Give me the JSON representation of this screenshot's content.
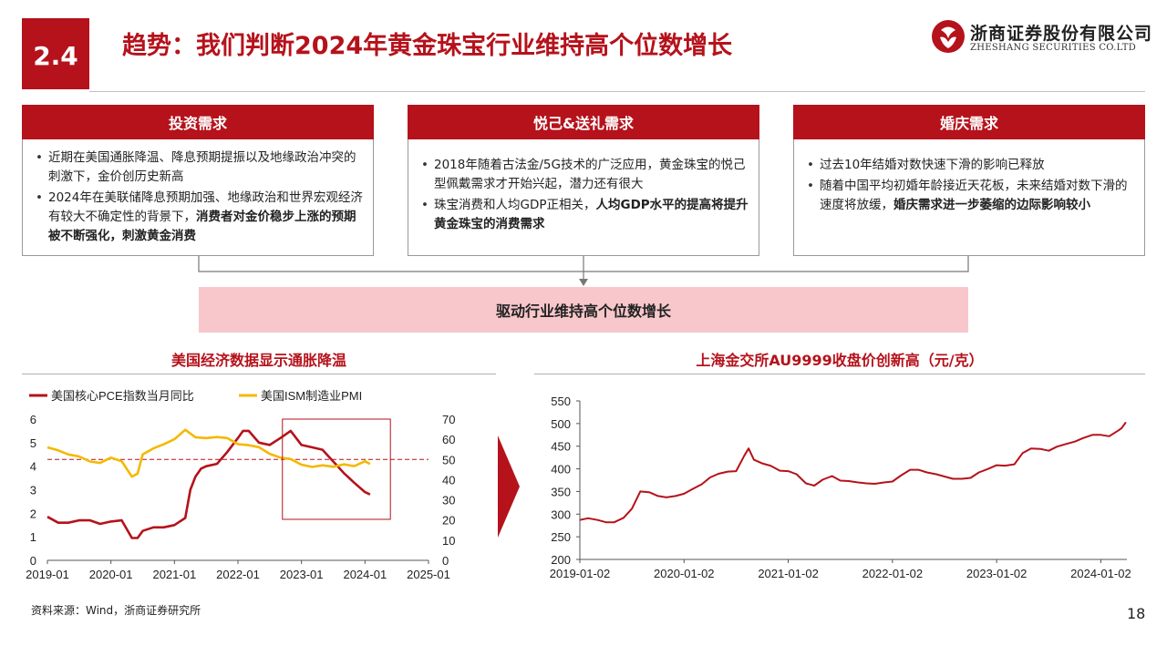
{
  "header": {
    "section_number": "2.4",
    "title": "趋势：我们判断2024年黄金珠宝行业维持高个位数增长",
    "logo_cn": "浙商证券股份有限公司",
    "logo_en": "ZHESHANG SECURITIES CO.LTD"
  },
  "panels": [
    {
      "title": "投资需求",
      "bullets": [
        {
          "text": "近期在美国通胀降温、降息预期提振以及地缘政治冲突的刺激下，金价创历史新高",
          "bold": ""
        },
        {
          "text": "2024年在美联储降息预期加强、地缘政治和世界宏观经济有较大不确定性的背景下，",
          "bold": "消费者对金价稳步上涨的预期被不断强化，刺激黄金消费"
        }
      ]
    },
    {
      "title": "悦己&送礼需求",
      "bullets": [
        {
          "text": "2018年随着古法金/5G技术的广泛应用，黄金珠宝的悦己型佩戴需求才开始兴起，潜力还有很大",
          "bold": ""
        },
        {
          "text": "珠宝消费和人均GDP正相关，",
          "bold": "人均GDP水平的提高将提升黄金珠宝的消费需求"
        }
      ]
    },
    {
      "title": "婚庆需求",
      "bullets": [
        {
          "text": "过去10年结婚对数快速下滑的影响已释放",
          "bold": ""
        },
        {
          "text": "随着中国平均初婚年龄接近天花板，未来结婚对数下滑的速度将放缓，",
          "bold": "婚庆需求进一步萎缩的边际影响较小"
        }
      ]
    }
  ],
  "driver_banner": "驱动行业维持高个位数增长",
  "colors": {
    "accent": "#b5121b",
    "gold": "#f5b800",
    "banner_bg": "#f7c7cb"
  },
  "chart_data": [
    {
      "type": "line",
      "title": "美国经济数据显示通胀降温",
      "x_ticks": [
        "2019-01",
        "2020-01",
        "2021-01",
        "2022-01",
        "2023-01",
        "2024-01",
        "2025-01"
      ],
      "x_range": [
        2019.0,
        2025.0
      ],
      "y_left_range": [
        0,
        6
      ],
      "y_left_ticks": [
        "0",
        "1",
        "2",
        "3",
        "4",
        "5",
        "6"
      ],
      "y_right_range": [
        0,
        70
      ],
      "y_right_ticks": [
        "0",
        "10",
        "20",
        "30",
        "40",
        "50",
        "60",
        "70"
      ],
      "reference_line": {
        "axis": "right",
        "value": 50
      },
      "highlight_box": {
        "x_start": 2022.7,
        "x_end": 2024.4
      },
      "series": [
        {
          "name": "美国核心PCE指数当月同比",
          "color": "#b5121b",
          "axis": "left",
          "x": [
            2019.0,
            2019.17,
            2019.33,
            2019.5,
            2019.67,
            2019.83,
            2020.0,
            2020.17,
            2020.33,
            2020.42,
            2020.5,
            2020.67,
            2020.83,
            2021.0,
            2021.17,
            2021.25,
            2021.33,
            2021.42,
            2021.5,
            2021.67,
            2021.83,
            2022.0,
            2022.08,
            2022.17,
            2022.33,
            2022.5,
            2022.67,
            2022.83,
            2023.0,
            2023.17,
            2023.33,
            2023.5,
            2023.67,
            2023.83,
            2024.0,
            2024.08
          ],
          "values": [
            1.85,
            1.6,
            1.6,
            1.7,
            1.7,
            1.55,
            1.65,
            1.7,
            0.95,
            0.95,
            1.25,
            1.4,
            1.4,
            1.5,
            1.8,
            3.0,
            3.55,
            3.9,
            4.0,
            4.1,
            4.6,
            5.2,
            5.5,
            5.5,
            5.0,
            4.9,
            5.2,
            5.5,
            4.9,
            4.8,
            4.7,
            4.2,
            3.7,
            3.3,
            2.9,
            2.8
          ]
        },
        {
          "name": "美国ISM制造业PMI",
          "color": "#f5b800",
          "axis": "right",
          "x": [
            2019.0,
            2019.17,
            2019.33,
            2019.5,
            2019.67,
            2019.83,
            2020.0,
            2020.17,
            2020.33,
            2020.42,
            2020.5,
            2020.67,
            2020.83,
            2021.0,
            2021.17,
            2021.33,
            2021.5,
            2021.67,
            2021.83,
            2022.0,
            2022.17,
            2022.33,
            2022.5,
            2022.67,
            2022.83,
            2023.0,
            2023.17,
            2023.33,
            2023.5,
            2023.67,
            2023.83,
            2024.0,
            2024.08
          ],
          "values": [
            56,
            54.5,
            52.5,
            51.5,
            49,
            48.3,
            50.9,
            49.1,
            41.5,
            43,
            52.5,
            55.5,
            57.5,
            60,
            64.7,
            61,
            60.6,
            61.1,
            60.6,
            57.6,
            57.1,
            56.1,
            52.8,
            50.9,
            50.2,
            47.4,
            46.3,
            47.1,
            46.4,
            47.6,
            46.7,
            49.1,
            47.8
          ]
        }
      ]
    },
    {
      "type": "line",
      "title": "上海金交所AU9999收盘价创新高（元/克）",
      "x_ticks": [
        "2019-01-02",
        "2020-01-02",
        "2021-01-02",
        "2022-01-02",
        "2023-01-02",
        "2024-01-02"
      ],
      "x_range": [
        2019.0,
        2024.25
      ],
      "y_range": [
        200,
        550
      ],
      "y_ticks": [
        "200",
        "250",
        "300",
        "350",
        "400",
        "450",
        "500",
        "550"
      ],
      "series": [
        {
          "name": "AU9999收盘价",
          "color": "#b5121b",
          "x": [
            2019.0,
            2019.08,
            2019.17,
            2019.25,
            2019.33,
            2019.42,
            2019.5,
            2019.58,
            2019.67,
            2019.75,
            2019.83,
            2019.92,
            2020.0,
            2020.08,
            2020.17,
            2020.25,
            2020.33,
            2020.42,
            2020.5,
            2020.58,
            2020.62,
            2020.67,
            2020.75,
            2020.83,
            2020.92,
            2021.0,
            2021.08,
            2021.17,
            2021.25,
            2021.33,
            2021.42,
            2021.5,
            2021.58,
            2021.67,
            2021.75,
            2021.83,
            2021.92,
            2022.0,
            2022.08,
            2022.17,
            2022.25,
            2022.33,
            2022.42,
            2022.5,
            2022.58,
            2022.67,
            2022.75,
            2022.83,
            2022.92,
            2023.0,
            2023.08,
            2023.17,
            2023.25,
            2023.33,
            2023.42,
            2023.5,
            2023.58,
            2023.67,
            2023.75,
            2023.83,
            2023.92,
            2024.0,
            2024.08,
            2024.17,
            2024.2,
            2024.24
          ],
          "values": [
            287,
            291,
            287,
            282,
            282,
            292,
            312,
            350,
            348,
            340,
            337,
            340,
            345,
            355,
            366,
            381,
            389,
            394,
            395,
            430,
            445,
            420,
            412,
            407,
            396,
            395,
            388,
            368,
            363,
            376,
            384,
            374,
            373,
            370,
            368,
            367,
            370,
            372,
            385,
            398,
            398,
            392,
            388,
            383,
            378,
            378,
            380,
            392,
            400,
            408,
            407,
            410,
            435,
            445,
            444,
            440,
            449,
            455,
            460,
            468,
            475,
            475,
            472,
            485,
            490,
            503
          ]
        }
      ]
    }
  ],
  "footnote": "资料来源：Wind，浙商证券研究所",
  "page_number": "18"
}
